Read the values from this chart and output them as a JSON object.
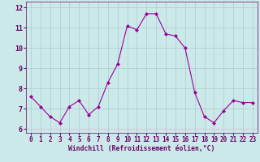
{
  "x": [
    0,
    1,
    2,
    3,
    4,
    5,
    6,
    7,
    8,
    9,
    10,
    11,
    12,
    13,
    14,
    15,
    16,
    17,
    18,
    19,
    20,
    21,
    22,
    23
  ],
  "y": [
    7.6,
    7.1,
    6.6,
    6.3,
    7.1,
    7.4,
    6.7,
    7.1,
    8.3,
    9.2,
    11.1,
    10.9,
    11.7,
    11.7,
    10.7,
    10.6,
    10.0,
    7.8,
    6.6,
    6.3,
    6.9,
    7.4,
    7.3,
    7.3
  ],
  "line_color": "#990099",
  "marker": "D",
  "marker_size": 2.0,
  "bg_color": "#cce9e9",
  "grid_color": "#aacccc",
  "xlabel": "Windchill (Refroidissement éolien,°C)",
  "ylabel": "",
  "title": "",
  "xlim": [
    -0.5,
    23.5
  ],
  "ylim": [
    5.8,
    12.3
  ],
  "yticks": [
    6,
    7,
    8,
    9,
    10,
    11,
    12
  ],
  "xticks": [
    0,
    1,
    2,
    3,
    4,
    5,
    6,
    7,
    8,
    9,
    10,
    11,
    12,
    13,
    14,
    15,
    16,
    17,
    18,
    19,
    20,
    21,
    22,
    23
  ],
  "tick_color": "#660066",
  "xlabel_color": "#660066",
  "xlabel_fontsize": 5.8,
  "tick_fontsize": 5.5
}
